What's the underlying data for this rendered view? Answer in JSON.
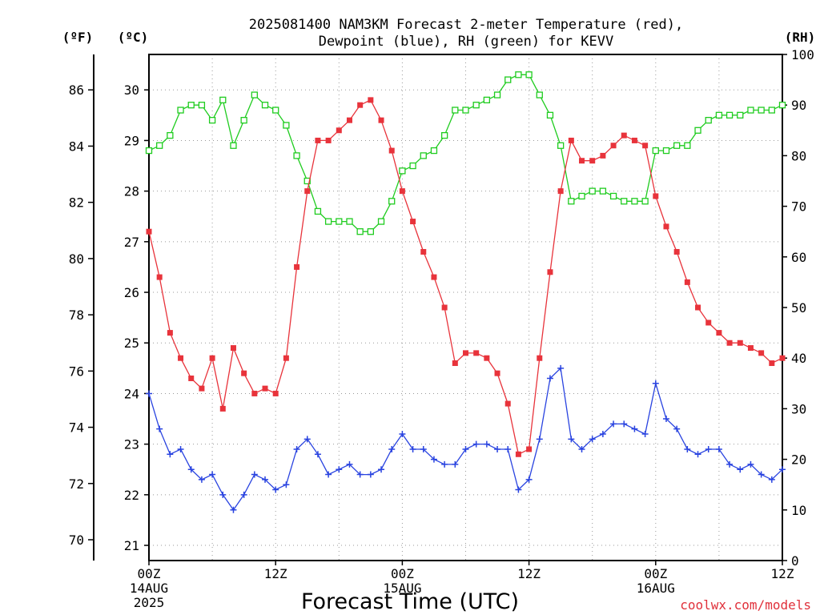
{
  "title_line1": "2025081400 NAM3KM Forecast 2-meter Temperature (red),",
  "title_line2": "Dewpoint (blue), RH (green) for KEVV",
  "unit_f": "(ºF)",
  "unit_c": "(ºC)",
  "unit_rh": "(RH)",
  "xlabel": "Forecast Time (UTC)",
  "credit": "coolwx.com/models",
  "colors": {
    "temperature": "#e8333b",
    "dewpoint": "#2943e0",
    "rh": "#1fcc1f",
    "grid": "#999999"
  },
  "chart_data": {
    "type": "line",
    "title": "2025081400 NAM3KM Forecast 2-meter Temperature (red), Dewpoint (blue), RH (green) for KEVV",
    "xlabel": "Forecast Time (UTC)",
    "x_unit": "forecast hour",
    "xlim": [
      0,
      60
    ],
    "x_ticks": [
      {
        "hour": 0,
        "lines": [
          "00Z",
          "14AUG",
          "2025"
        ]
      },
      {
        "hour": 12,
        "lines": [
          "12Z"
        ]
      },
      {
        "hour": 24,
        "lines": [
          "00Z",
          "15AUG"
        ]
      },
      {
        "hour": 36,
        "lines": [
          "12Z"
        ]
      },
      {
        "hour": 48,
        "lines": [
          "00Z",
          "16AUG"
        ]
      },
      {
        "hour": 60,
        "lines": [
          "12Z"
        ]
      }
    ],
    "y_celsius_lim": [
      20.7,
      30.7
    ],
    "y_celsius_ticks": [
      21,
      22,
      23,
      24,
      25,
      26,
      27,
      28,
      29,
      30
    ],
    "y_fahrenheit_ticks": [
      70,
      72,
      74,
      76,
      78,
      80,
      82,
      84,
      86
    ],
    "y_rh_lim": [
      0,
      100
    ],
    "y_rh_ticks": [
      0,
      10,
      20,
      30,
      40,
      50,
      60,
      70,
      80,
      90,
      100
    ],
    "series": [
      {
        "name": "Temperature",
        "unit": "C",
        "values": [
          27.2,
          26.3,
          25.2,
          24.7,
          24.3,
          24.1,
          24.7,
          23.7,
          24.9,
          24.4,
          24.0,
          24.1,
          24.0,
          24.7,
          26.5,
          28.0,
          29.0,
          29.0,
          29.2,
          29.4,
          29.7,
          29.8,
          29.4,
          28.8,
          28.0,
          27.4,
          26.8,
          26.3,
          25.7,
          24.6,
          24.8,
          24.8,
          24.7,
          24.4,
          23.8,
          22.8,
          22.9,
          24.7,
          26.4,
          28.0,
          29.0,
          28.6,
          28.6,
          28.7,
          28.9,
          29.1,
          29.0,
          28.9,
          27.9,
          27.3,
          26.8,
          26.2,
          25.7,
          25.4,
          25.2,
          25.0,
          25.0,
          24.9,
          24.8,
          24.6,
          24.7
        ]
      },
      {
        "name": "Dewpoint",
        "unit": "C",
        "values": [
          24.0,
          23.3,
          22.8,
          22.9,
          22.5,
          22.3,
          22.4,
          22.0,
          21.7,
          22.0,
          22.4,
          22.3,
          22.1,
          22.2,
          22.9,
          23.1,
          22.8,
          22.4,
          22.5,
          22.6,
          22.4,
          22.4,
          22.5,
          22.9,
          23.2,
          22.9,
          22.9,
          22.7,
          22.6,
          22.6,
          22.9,
          23.0,
          23.0,
          22.9,
          22.9,
          22.1,
          22.3,
          23.1,
          24.3,
          24.5,
          23.1,
          22.9,
          23.1,
          23.2,
          23.4,
          23.4,
          23.3,
          23.2,
          24.2,
          23.5,
          23.3,
          22.9,
          22.8,
          22.9,
          22.9,
          22.6,
          22.5,
          22.6,
          22.4,
          22.3,
          22.5
        ]
      },
      {
        "name": "RH",
        "unit": "%",
        "values": [
          81,
          82,
          84,
          89,
          90,
          90,
          87,
          91,
          82,
          87,
          92,
          90,
          89,
          86,
          80,
          75,
          69,
          67,
          67,
          67,
          65,
          65,
          67,
          71,
          77,
          78,
          80,
          81,
          84,
          89,
          89,
          90,
          91,
          92,
          95,
          96,
          96,
          92,
          88,
          82,
          71,
          72,
          73,
          73,
          72,
          71,
          71,
          71,
          81,
          81,
          82,
          82,
          85,
          87,
          88,
          88,
          88,
          89,
          89,
          89,
          90
        ]
      }
    ]
  }
}
